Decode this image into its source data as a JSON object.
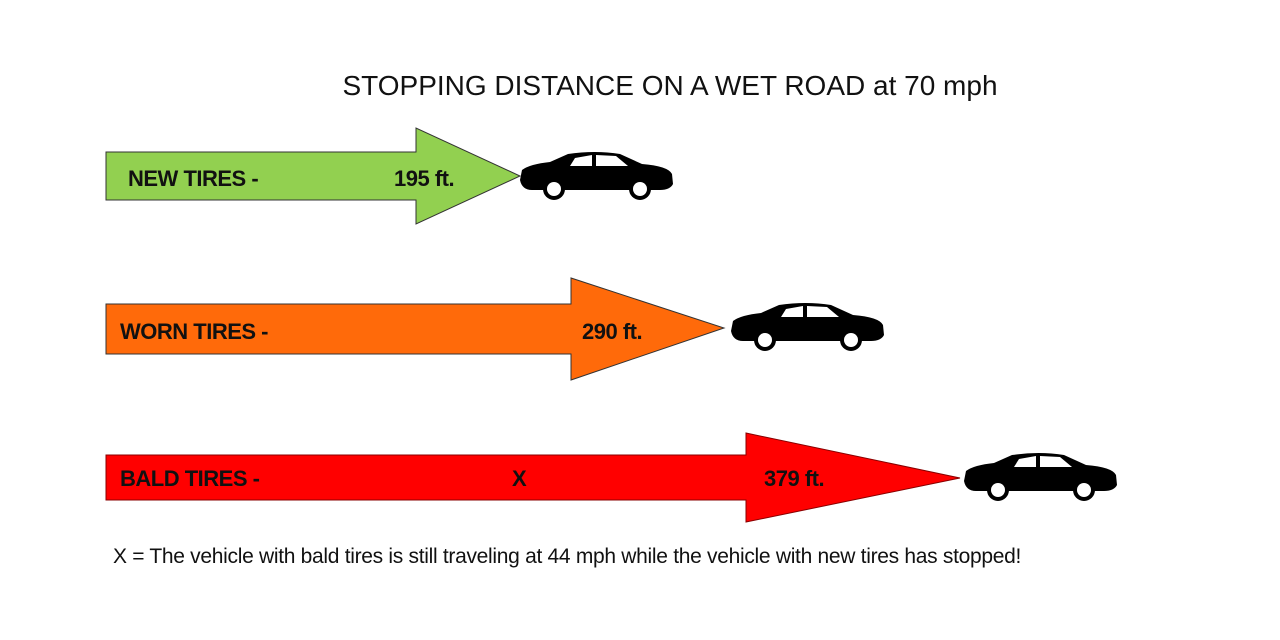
{
  "title": "STOPPING DISTANCE ON A WET ROAD at 70 mph",
  "rows": [
    {
      "label": "NEW TIRES  -",
      "distance": "195 ft.",
      "marker": "",
      "color": "#92d050"
    },
    {
      "label": "WORN TIRES  -",
      "distance": "290 ft.",
      "marker": "",
      "color": "#ff6a0a"
    },
    {
      "label": "BALD TIRES  -",
      "distance": "379 ft.",
      "marker": "X",
      "color": "#ff0000"
    }
  ],
  "icon": "car-icon",
  "footnote": "X = The vehicle with bald tires is still traveling at 44 mph while the vehicle with new tires has stopped!"
}
